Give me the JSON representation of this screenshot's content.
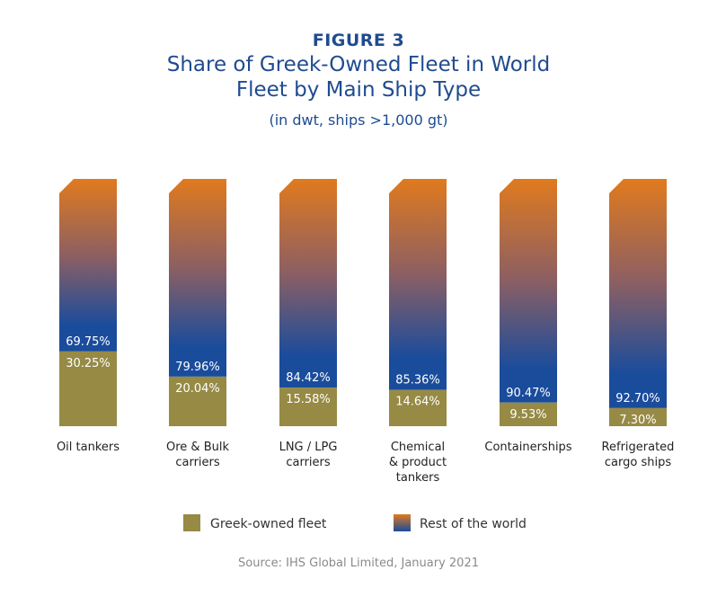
{
  "figure_label": "FIGURE 3",
  "colors": {
    "greek": "#968a45",
    "rest_top": "#e07a1e",
    "rest_bottom": "#1a4c9c",
    "title": "#1f4b8f"
  },
  "chart_data": {
    "type": "bar",
    "stacked": true,
    "title": "Share of Greek-Owned Fleet in World Fleet by Main Ship Type",
    "subtitle": "(in dwt, ships >1,000 gt)",
    "ylim": [
      0,
      100
    ],
    "grid": false,
    "legend_position": "bottom",
    "categories": [
      "Oil tankers",
      "Ore & Bulk carriers",
      "LNG / LPG carriers",
      "Chemical & product tankers",
      "Containerships",
      "Refrigerated cargo ships"
    ],
    "series": [
      {
        "name": "Greek-owned fleet",
        "values": [
          30.25,
          20.04,
          15.58,
          14.64,
          9.53,
          7.3
        ],
        "labels": [
          "30.25%",
          "20.04%",
          "15.58%",
          "14.64%",
          "9.53%",
          "7.30%"
        ]
      },
      {
        "name": "Rest of the world",
        "values": [
          69.75,
          79.96,
          84.42,
          85.36,
          90.47,
          92.7
        ],
        "labels": [
          "69.75%",
          "79.96%",
          "84.42%",
          "85.36%",
          "90.47%",
          "92.70%"
        ]
      }
    ],
    "category_lines": [
      [
        "Oil tankers"
      ],
      [
        "Ore & Bulk",
        "carriers"
      ],
      [
        "LNG / LPG",
        "carriers"
      ],
      [
        "Chemical",
        "& product",
        "tankers"
      ],
      [
        "Containerships"
      ],
      [
        "Refrigerated",
        "cargo ships"
      ]
    ]
  },
  "source": "Source: IHS Global Limited, January 2021"
}
